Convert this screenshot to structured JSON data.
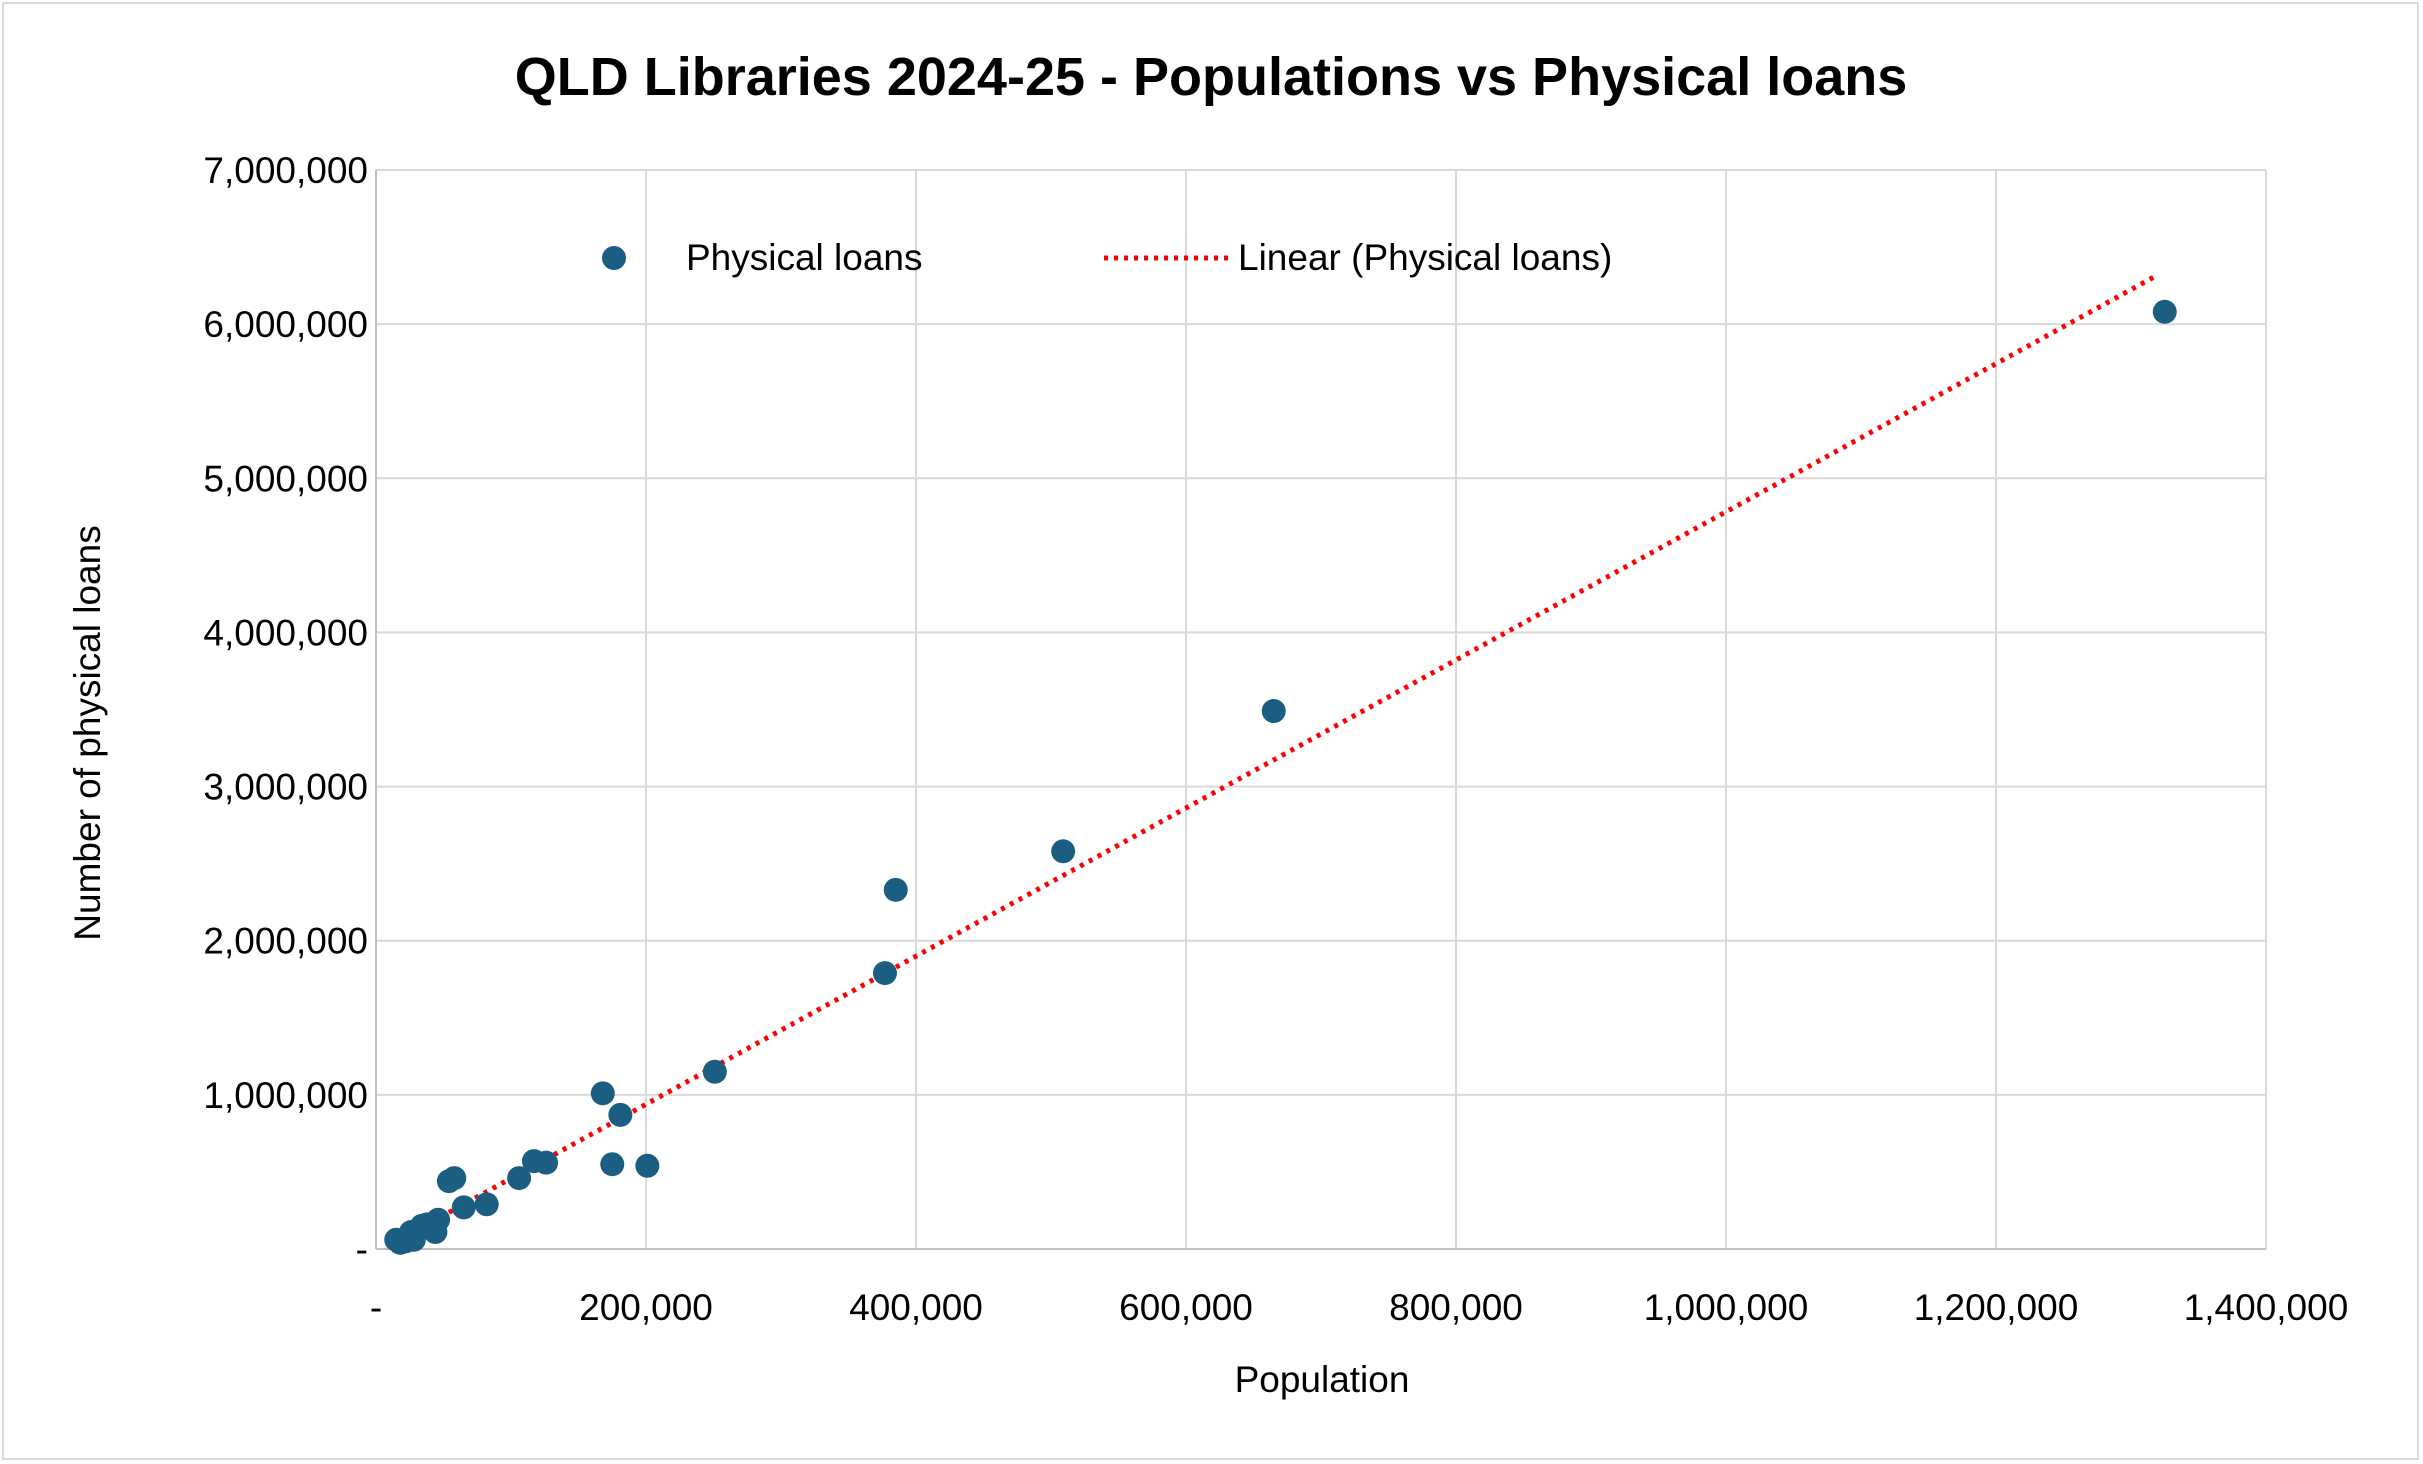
{
  "chart_data": {
    "type": "scatter",
    "title": "QLD Libraries 2024-25 - Populations vs Physical loans",
    "xlabel": "Population",
    "ylabel": "Number of physical loans",
    "xlim": [
      0,
      1400000
    ],
    "ylim": [
      0,
      7000000
    ],
    "x_ticks": [
      0,
      200000,
      400000,
      600000,
      800000,
      1000000,
      1200000,
      1400000
    ],
    "x_tick_labels": [
      "-",
      "200,000",
      "400,000",
      "600,000",
      "800,000",
      "1,000,000",
      "1,200,000",
      "1,400,000"
    ],
    "y_ticks": [
      0,
      1000000,
      2000000,
      3000000,
      4000000,
      5000000,
      6000000,
      7000000
    ],
    "y_tick_labels": [
      "-",
      "1,000,000",
      "2,000,000",
      "3,000,000",
      "4,000,000",
      "5,000,000",
      "6,000,000",
      "7,000,000"
    ],
    "grid": true,
    "legend_position": "top",
    "series": [
      {
        "name": "Physical loans",
        "color": "#1b5e82",
        "marker": "circle",
        "x": [
          15000,
          18000,
          22000,
          26000,
          28000,
          34000,
          38000,
          44000,
          46000,
          54000,
          58000,
          65000,
          82000,
          106000,
          117000,
          126000,
          168000,
          175000,
          181000,
          201000,
          251000,
          377000,
          385000,
          509000,
          665000,
          1325000
        ],
        "y": [
          60000,
          40000,
          50000,
          110000,
          60000,
          150000,
          160000,
          110000,
          190000,
          440000,
          460000,
          270000,
          290000,
          460000,
          570000,
          560000,
          1010000,
          550000,
          870000,
          540000,
          1150000,
          1790000,
          2330000,
          2580000,
          3490000,
          6080000
        ]
      }
    ],
    "trendline": {
      "name": "Linear (Physical loans)",
      "color": "#ff0000",
      "style": "dotted",
      "x": [
        15000,
        1320000
      ],
      "y": [
        50000,
        6320000
      ]
    }
  }
}
